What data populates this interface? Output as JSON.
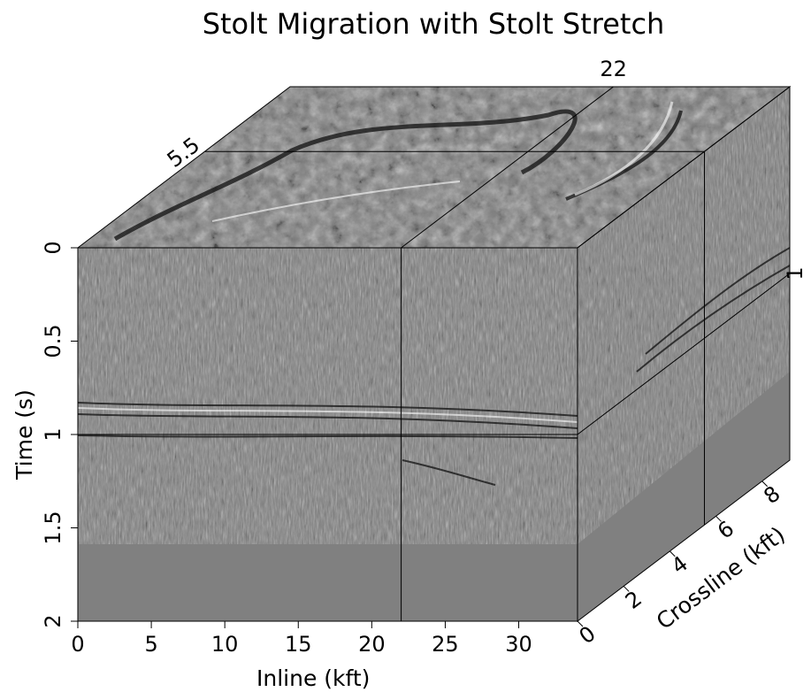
{
  "chart_data": {
    "type": "cube",
    "title": "Stolt Migration with Stolt Stretch",
    "xlabel": "Inline (kft)",
    "ylabel": "Time (s)",
    "zlabel": "Crossline (kft)",
    "xlim": [
      0,
      34
    ],
    "xticks": [
      0,
      5,
      10,
      15,
      20,
      25,
      30
    ],
    "ylim": [
      0,
      2
    ],
    "yticks": [
      0,
      0.5,
      1,
      1.5,
      2
    ],
    "zlim": [
      0,
      9.2
    ],
    "zticks": [
      0,
      2,
      4,
      6,
      8
    ],
    "slices": {
      "inline": 22,
      "crossline": 5.5,
      "time": 1
    }
  }
}
